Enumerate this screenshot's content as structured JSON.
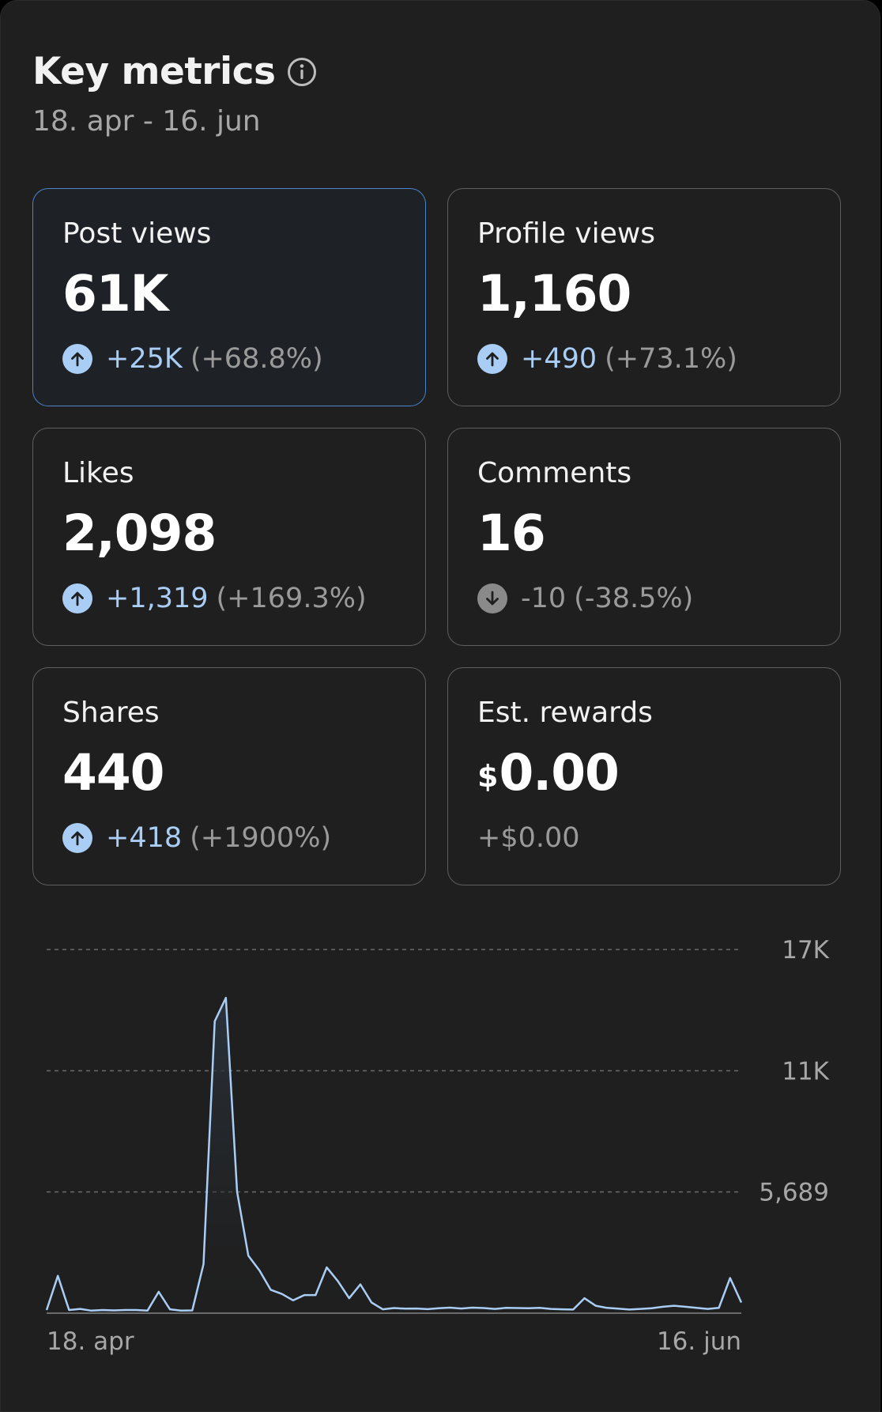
{
  "header": {
    "title": "Key metrics",
    "date_range": "18. apr - 16. jun"
  },
  "metrics": [
    {
      "label": "Post views",
      "value": "61K",
      "delta": "+25K",
      "pct": "(+68.8%)",
      "trend": "up",
      "selected": true
    },
    {
      "label": "Profile views",
      "value": "1,160",
      "delta": "+490",
      "pct": "(+73.1%)",
      "trend": "up"
    },
    {
      "label": "Likes",
      "value": "2,098",
      "delta": "+1,319",
      "pct": "(+169.3%)",
      "trend": "up"
    },
    {
      "label": "Comments",
      "value": "16",
      "delta": "-10",
      "pct": "(-38.5%)",
      "trend": "down"
    },
    {
      "label": "Shares",
      "value": "440",
      "delta": "+418",
      "pct": "(+1900%)",
      "trend": "up"
    },
    {
      "label": "Est. rewards",
      "currency": "$",
      "value": "0.00",
      "delta": "+$0.00",
      "trend": "none"
    }
  ],
  "colors": {
    "accent": "#a9cdf5",
    "selected_border": "#4a84c9",
    "background": "#1f1f1f"
  },
  "chart_data": {
    "type": "line",
    "title": "Post views",
    "x_start_label": "18. apr",
    "x_end_label": "16. jun",
    "y_tick_labels": [
      "5,689",
      "11K",
      "17K"
    ],
    "y_ticks": [
      5689,
      11379,
      17068
    ],
    "ylim": [
      0,
      17068
    ],
    "grid": true,
    "values": [
      150,
      1750,
      150,
      200,
      120,
      150,
      130,
      150,
      150,
      120,
      1000,
      180,
      120,
      130,
      2300,
      13700,
      14800,
      5700,
      2700,
      2000,
      1100,
      900,
      600,
      850,
      850,
      2150,
      1500,
      700,
      1350,
      500,
      180,
      240,
      210,
      220,
      190,
      230,
      260,
      220,
      260,
      240,
      200,
      250,
      240,
      230,
      250,
      200,
      180,
      170,
      700,
      350,
      250,
      210,
      170,
      200,
      230,
      300,
      350,
      300,
      250,
      200,
      250,
      1650,
      500
    ]
  }
}
